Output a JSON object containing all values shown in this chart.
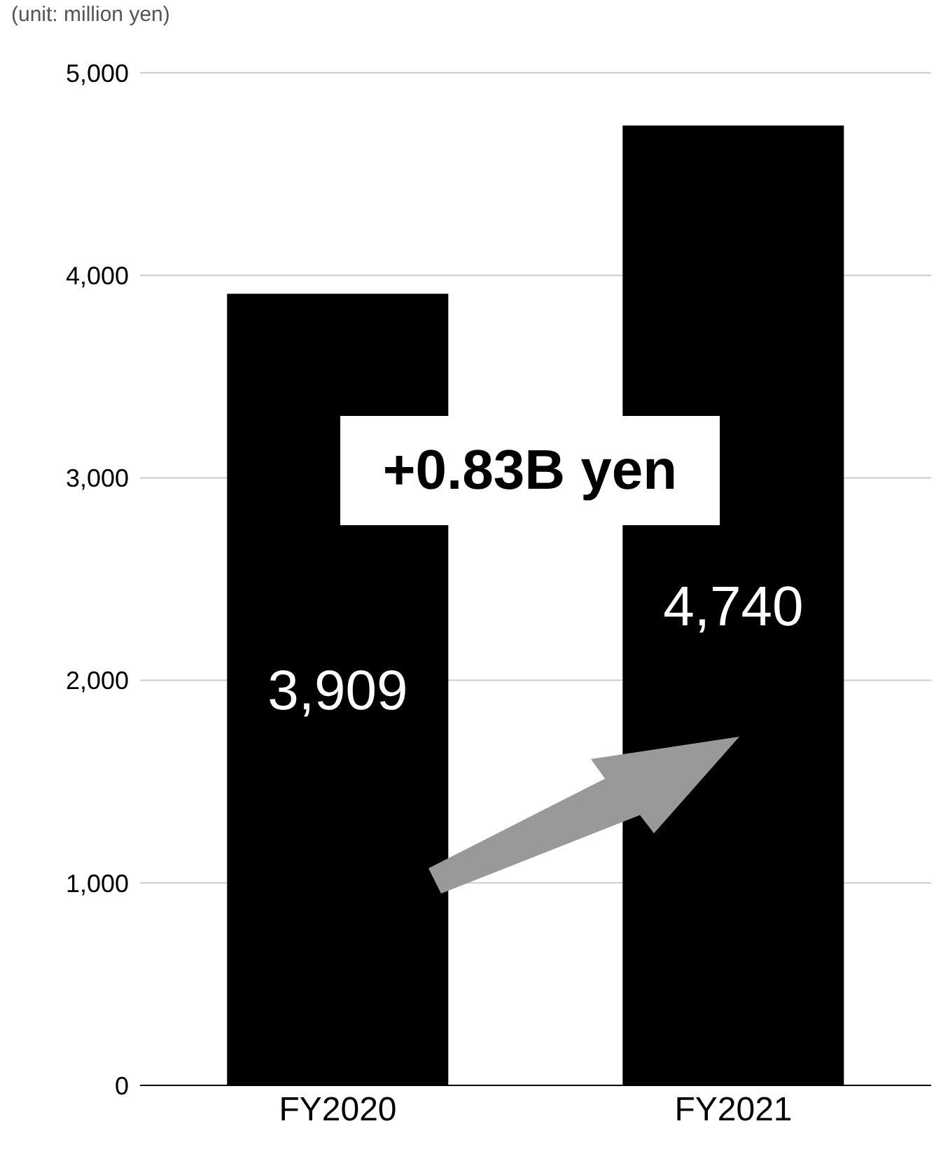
{
  "chart_data": {
    "type": "bar",
    "ylabel": "(unit: million yen)",
    "categories": [
      "FY2020",
      "FY2021"
    ],
    "values": [
      3909,
      4740
    ],
    "value_labels": [
      "3,909",
      "4,740"
    ],
    "color": "#000000",
    "ylim": [
      0,
      5000
    ],
    "yticks": [
      0,
      {
        "value": 1000,
        "label": "1,000"
      },
      {
        "value": 2000,
        "label": "2,000"
      },
      {
        "value": 3000,
        "label": "3,000"
      },
      {
        "value": 4000,
        "label": "4,000"
      },
      {
        "value": 5000,
        "label": "5,000"
      }
    ],
    "grid": "y",
    "annotations": [
      "+0.83B yen"
    ]
  }
}
